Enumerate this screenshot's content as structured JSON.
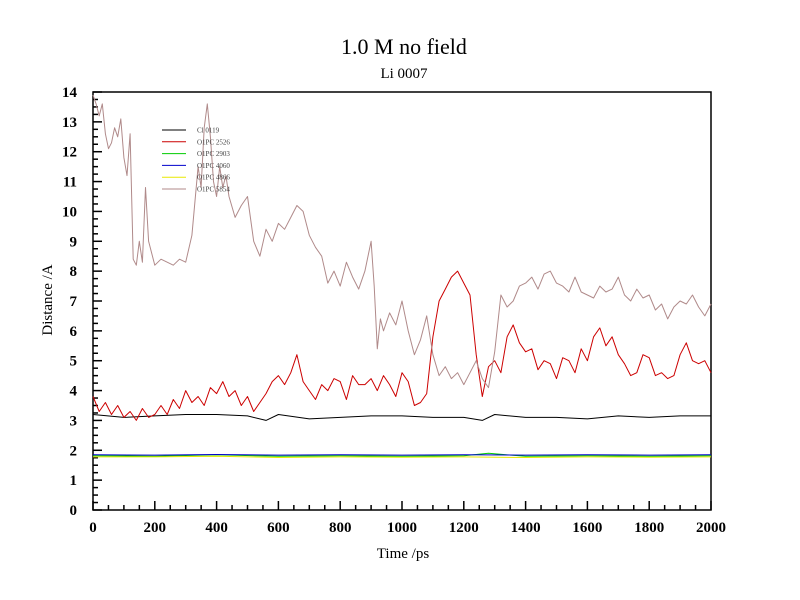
{
  "chart_data": {
    "type": "line",
    "title": "1.0 M no field",
    "subtitle": "Li 0007",
    "xlabel": "Time /ps",
    "ylabel": "Distance /A",
    "xlim": [
      0,
      2000
    ],
    "ylim": [
      0,
      14
    ],
    "xticks": [
      0,
      200,
      400,
      600,
      800,
      1000,
      1200,
      1400,
      1600,
      1800,
      2000
    ],
    "yticks": [
      0,
      1,
      2,
      3,
      4,
      5,
      6,
      7,
      8,
      9,
      10,
      11,
      12,
      13,
      14
    ],
    "grid": false,
    "legend_position": "top-left",
    "series": [
      {
        "name": "Cl 0119",
        "color": "#000000",
        "x": [
          0,
          100,
          200,
          300,
          400,
          500,
          560,
          600,
          700,
          800,
          900,
          1000,
          1100,
          1200,
          1260,
          1300,
          1400,
          1500,
          1600,
          1700,
          1800,
          1900,
          2000
        ],
        "y": [
          3.2,
          3.1,
          3.15,
          3.2,
          3.2,
          3.15,
          3.0,
          3.2,
          3.05,
          3.1,
          3.15,
          3.15,
          3.1,
          3.1,
          3.0,
          3.2,
          3.1,
          3.1,
          3.05,
          3.15,
          3.1,
          3.15,
          3.15
        ]
      },
      {
        "name": "O1PC 2526",
        "color": "#cc0000",
        "x": [
          0,
          20,
          40,
          60,
          80,
          100,
          120,
          140,
          160,
          180,
          200,
          220,
          240,
          260,
          280,
          300,
          320,
          340,
          360,
          380,
          400,
          420,
          440,
          460,
          480,
          500,
          520,
          540,
          560,
          580,
          600,
          620,
          640,
          660,
          680,
          700,
          720,
          740,
          760,
          780,
          800,
          820,
          840,
          860,
          880,
          900,
          920,
          940,
          960,
          980,
          1000,
          1020,
          1040,
          1060,
          1080,
          1100,
          1120,
          1140,
          1160,
          1180,
          1200,
          1220,
          1240,
          1260,
          1280,
          1300,
          1320,
          1340,
          1360,
          1380,
          1400,
          1420,
          1440,
          1460,
          1480,
          1500,
          1520,
          1540,
          1560,
          1580,
          1600,
          1620,
          1640,
          1660,
          1680,
          1700,
          1720,
          1740,
          1760,
          1780,
          1800,
          1820,
          1840,
          1860,
          1880,
          1900,
          1920,
          1940,
          1960,
          1980,
          2000
        ],
        "y": [
          3.8,
          3.3,
          3.6,
          3.2,
          3.5,
          3.1,
          3.3,
          3.0,
          3.4,
          3.1,
          3.2,
          3.5,
          3.2,
          3.7,
          3.4,
          4.0,
          3.6,
          3.8,
          3.5,
          4.1,
          3.9,
          4.3,
          3.8,
          4.0,
          3.5,
          3.8,
          3.3,
          3.6,
          3.9,
          4.3,
          4.5,
          4.2,
          4.6,
          5.2,
          4.3,
          4.0,
          3.7,
          4.2,
          4.0,
          4.4,
          4.3,
          3.7,
          4.5,
          4.2,
          4.2,
          4.4,
          4.0,
          4.5,
          4.2,
          3.8,
          4.6,
          4.3,
          3.5,
          3.6,
          3.9,
          5.8,
          7.0,
          7.4,
          7.8,
          8.0,
          7.6,
          7.2,
          5.2,
          3.8,
          4.8,
          5.0,
          4.6,
          5.8,
          6.2,
          5.6,
          5.3,
          5.4,
          4.7,
          5.0,
          4.9,
          4.4,
          5.1,
          5.0,
          4.6,
          5.4,
          5.0,
          5.8,
          6.1,
          5.5,
          5.8,
          5.2,
          4.9,
          4.5,
          4.6,
          5.2,
          5.1,
          4.5,
          4.6,
          4.4,
          4.5,
          5.2,
          5.6,
          5.0,
          4.9,
          5.0,
          4.6
        ]
      },
      {
        "name": "O1PC 2903",
        "color": "#00cc00",
        "x": [
          0,
          200,
          400,
          600,
          800,
          1000,
          1200,
          1280,
          1400,
          1600,
          1800,
          2000
        ],
        "y": [
          1.82,
          1.8,
          1.85,
          1.8,
          1.82,
          1.8,
          1.82,
          1.9,
          1.8,
          1.82,
          1.8,
          1.82
        ]
      },
      {
        "name": "O1PC 4060",
        "color": "#0000cc",
        "x": [
          0,
          200,
          400,
          600,
          800,
          1000,
          1200,
          1400,
          1600,
          1800,
          2000
        ],
        "y": [
          1.85,
          1.84,
          1.86,
          1.84,
          1.85,
          1.84,
          1.85,
          1.84,
          1.85,
          1.84,
          1.85
        ]
      },
      {
        "name": "O1PC 4866",
        "color": "#e8e800",
        "x": [
          0,
          200,
          400,
          600,
          800,
          1000,
          1200,
          1400,
          1600,
          1800,
          2000
        ],
        "y": [
          1.78,
          1.78,
          1.8,
          1.76,
          1.78,
          1.77,
          1.78,
          1.76,
          1.78,
          1.77,
          1.78
        ]
      },
      {
        "name": "O1PC 5854",
        "color": "#b08a8a",
        "x": [
          0,
          10,
          20,
          30,
          40,
          50,
          60,
          70,
          80,
          90,
          100,
          110,
          120,
          130,
          140,
          150,
          160,
          170,
          180,
          200,
          220,
          240,
          260,
          280,
          300,
          320,
          340,
          350,
          360,
          370,
          380,
          390,
          400,
          410,
          420,
          430,
          440,
          460,
          480,
          500,
          520,
          540,
          560,
          580,
          600,
          620,
          640,
          660,
          680,
          700,
          720,
          740,
          760,
          780,
          800,
          820,
          840,
          860,
          880,
          900,
          910,
          920,
          930,
          940,
          960,
          980,
          1000,
          1020,
          1040,
          1060,
          1080,
          1100,
          1120,
          1140,
          1160,
          1180,
          1200,
          1220,
          1240,
          1260,
          1280,
          1300,
          1320,
          1340,
          1360,
          1380,
          1400,
          1420,
          1440,
          1460,
          1480,
          1500,
          1520,
          1540,
          1560,
          1580,
          1600,
          1620,
          1640,
          1660,
          1680,
          1700,
          1720,
          1740,
          1760,
          1780,
          1800,
          1820,
          1840,
          1860,
          1880,
          1900,
          1920,
          1940,
          1960,
          1980,
          2000
        ],
        "y": [
          13.9,
          13.6,
          13.2,
          13.6,
          12.6,
          12.1,
          12.3,
          12.8,
          12.5,
          13.1,
          11.8,
          11.2,
          12.6,
          8.4,
          8.2,
          9.0,
          8.3,
          10.8,
          9.0,
          8.2,
          8.4,
          8.3,
          8.2,
          8.4,
          8.3,
          9.2,
          11.5,
          10.8,
          12.8,
          13.6,
          12.5,
          11.0,
          10.5,
          11.5,
          10.8,
          11.2,
          10.5,
          9.8,
          10.2,
          10.5,
          9.0,
          8.5,
          9.4,
          9.0,
          9.6,
          9.4,
          9.8,
          10.2,
          10.0,
          9.2,
          8.8,
          8.5,
          7.6,
          8.0,
          7.5,
          8.3,
          7.8,
          7.4,
          8.0,
          9.0,
          7.5,
          5.4,
          6.4,
          6.0,
          6.6,
          6.2,
          7.0,
          6.0,
          5.2,
          5.7,
          6.5,
          5.2,
          4.5,
          4.8,
          4.4,
          4.6,
          4.2,
          4.6,
          5.0,
          4.4,
          4.1,
          5.3,
          7.2,
          6.8,
          7.0,
          7.5,
          7.6,
          7.8,
          7.4,
          7.9,
          8.0,
          7.6,
          7.5,
          7.3,
          7.8,
          7.3,
          7.2,
          7.1,
          7.5,
          7.3,
          7.4,
          7.8,
          7.2,
          7.0,
          7.4,
          7.1,
          7.2,
          6.7,
          6.9,
          6.4,
          6.8,
          7.0,
          6.9,
          7.2,
          6.8,
          6.5,
          6.9
        ]
      }
    ]
  }
}
